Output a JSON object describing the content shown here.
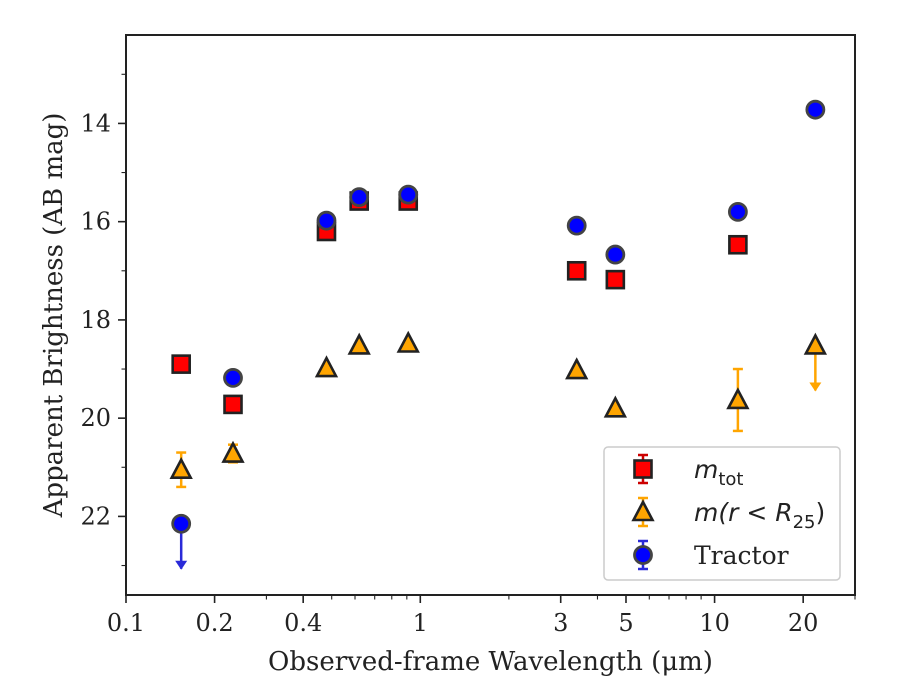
{
  "chart_data": {
    "type": "scatter",
    "xlabel": "Observed-frame Wavelength (μm)",
    "ylabel": "Apparent Brightness (AB mag)",
    "xscale": "log",
    "xlim": [
      0.1,
      30
    ],
    "ylim": [
      23.6,
      12.2
    ],
    "y_inverted": true,
    "x_ticks": [
      0.1,
      0.2,
      0.4,
      1,
      3,
      5,
      10,
      20
    ],
    "x_tick_labels": [
      "0.1",
      "0.2",
      "0.4",
      "1",
      "3",
      "5",
      "10",
      "20"
    ],
    "y_ticks": [
      14,
      16,
      18,
      20,
      22
    ],
    "y_tick_labels": [
      "14",
      "16",
      "18",
      "20",
      "22"
    ],
    "grid": false,
    "legend_position": "lower-right",
    "series": [
      {
        "name": "m_tot",
        "legend_main": "m",
        "legend_sub": "tot",
        "marker": "square",
        "color": "#ff0000",
        "edge_color": "#222222",
        "error_color": "#cc0000",
        "points": [
          {
            "x": 0.154,
            "y": 18.9
          },
          {
            "x": 0.231,
            "y": 19.72
          },
          {
            "x": 0.48,
            "y": 16.2
          },
          {
            "x": 0.62,
            "y": 15.58
          },
          {
            "x": 0.91,
            "y": 15.58
          },
          {
            "x": 3.4,
            "y": 17.0
          },
          {
            "x": 4.6,
            "y": 17.18
          },
          {
            "x": 12.0,
            "y": 16.47
          }
        ]
      },
      {
        "name": "m(r < R25)",
        "legend_main": "m(r < R",
        "legend_sub": "25",
        "legend_tail": ")",
        "marker": "triangle",
        "color": "#ffa500",
        "edge_color": "#222222",
        "error_color": "#ffa500",
        "points": [
          {
            "x": 0.154,
            "y": 21.05,
            "yerr": 0.35
          },
          {
            "x": 0.231,
            "y": 20.72,
            "yerr": 0.18
          },
          {
            "x": 0.48,
            "y": 18.98
          },
          {
            "x": 0.62,
            "y": 18.52
          },
          {
            "x": 0.91,
            "y": 18.48
          },
          {
            "x": 3.4,
            "y": 19.02
          },
          {
            "x": 4.6,
            "y": 19.8
          },
          {
            "x": 12.0,
            "y": 19.63,
            "yerr": 0.63
          },
          {
            "x": 22.0,
            "y": 18.52,
            "upper_limit": true
          }
        ]
      },
      {
        "name": "Tractor",
        "marker": "circle",
        "color": "#0000ff",
        "edge_color": "#444444",
        "error_color": "#2a2ad8",
        "points": [
          {
            "x": 0.154,
            "y": 22.15,
            "upper_limit": true
          },
          {
            "x": 0.231,
            "y": 19.18
          },
          {
            "x": 0.48,
            "y": 15.98
          },
          {
            "x": 0.62,
            "y": 15.5
          },
          {
            "x": 0.91,
            "y": 15.45
          },
          {
            "x": 3.4,
            "y": 16.08
          },
          {
            "x": 4.6,
            "y": 16.67
          },
          {
            "x": 12.0,
            "y": 15.8
          },
          {
            "x": 22.0,
            "y": 13.72
          }
        ]
      }
    ]
  }
}
